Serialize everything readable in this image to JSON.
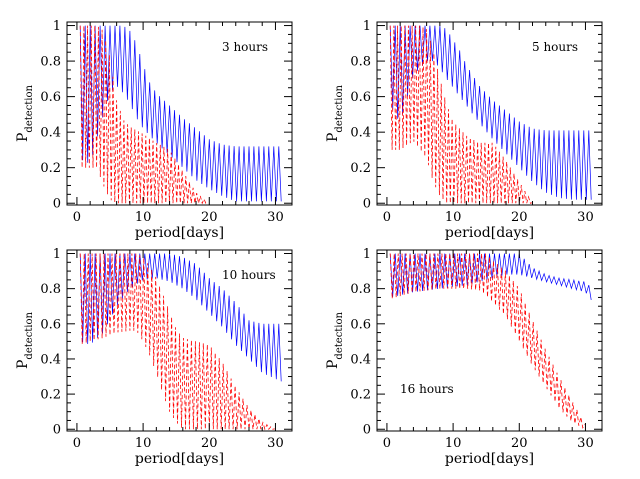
{
  "chart_data": [
    {
      "type": "line",
      "annotation": "3 hours",
      "xlabel": "period[days]",
      "ylabel_main": "P",
      "ylabel_sub": "detection",
      "xlim": [
        -1.5,
        32.5
      ],
      "ylim": [
        -0.01,
        1.02
      ],
      "xticks": [
        0,
        10,
        20,
        30
      ],
      "yticks": [
        0,
        0.2,
        0.4,
        0.6,
        0.8,
        1
      ],
      "series": [
        {
          "style": "solid",
          "color": "#0000ff",
          "x": [
            0.5,
            2,
            4,
            5,
            6,
            7,
            8,
            9,
            10,
            11,
            12,
            14,
            16,
            18,
            20,
            22,
            24,
            26,
            28,
            31
          ],
          "upper": [
            1,
            1,
            1,
            1,
            1,
            1,
            0.97,
            0.9,
            0.78,
            0.68,
            0.62,
            0.55,
            0.48,
            0.42,
            0.36,
            0.33,
            0.32,
            0.32,
            0.32,
            0.32
          ],
          "lower": [
            0.25,
            0.22,
            0.5,
            0.62,
            0.66,
            0.62,
            0.56,
            0.48,
            0.42,
            0.38,
            0.34,
            0.27,
            0.2,
            0.13,
            0.08,
            0.04,
            0.01,
            0.01,
            0.01,
            0.01
          ],
          "spacing": 0.75
        },
        {
          "style": "dashed",
          "color": "#ff0000",
          "x": [
            0.5,
            2,
            3,
            4,
            5,
            6,
            7,
            8,
            10,
            12,
            14,
            16,
            18,
            20
          ],
          "upper": [
            1,
            1,
            1,
            0.97,
            0.82,
            0.58,
            0.47,
            0.43,
            0.39,
            0.34,
            0.3,
            0.18,
            0.06,
            0
          ],
          "lower": [
            0.2,
            0.2,
            0.2,
            0.1,
            0.02,
            0,
            0,
            0,
            0,
            0,
            0,
            0,
            0,
            0
          ],
          "spacing": 0.55
        }
      ]
    },
    {
      "type": "line",
      "annotation": "5 hours",
      "xlabel": "period[days]",
      "ylabel_main": "P",
      "ylabel_sub": "detection",
      "xlim": [
        -1.5,
        32.5
      ],
      "ylim": [
        -0.01,
        1.02
      ],
      "xticks": [
        0,
        10,
        20,
        30
      ],
      "yticks": [
        0,
        0.2,
        0.4,
        0.6,
        0.8,
        1
      ],
      "series": [
        {
          "style": "solid",
          "color": "#0000ff",
          "x": [
            0.5,
            2,
            4,
            6,
            7,
            8,
            9,
            10,
            11,
            12,
            14,
            16,
            18,
            20,
            22,
            24,
            26,
            28,
            31
          ],
          "upper": [
            1,
            1,
            1,
            1,
            1,
            1,
            0.98,
            0.92,
            0.86,
            0.78,
            0.66,
            0.58,
            0.52,
            0.46,
            0.42,
            0.41,
            0.41,
            0.41,
            0.41
          ],
          "lower": [
            0.55,
            0.45,
            0.72,
            0.8,
            0.8,
            0.76,
            0.7,
            0.65,
            0.6,
            0.55,
            0.45,
            0.36,
            0.28,
            0.2,
            0.12,
            0.06,
            0.03,
            0.02,
            0.02
          ],
          "spacing": 0.75
        },
        {
          "style": "dashed",
          "color": "#ff0000",
          "x": [
            0.5,
            2,
            4,
            5,
            6,
            7,
            8,
            9,
            10,
            12,
            14,
            16,
            18,
            20,
            22
          ],
          "upper": [
            1,
            1,
            1,
            1,
            0.98,
            0.86,
            0.7,
            0.56,
            0.46,
            0.38,
            0.34,
            0.34,
            0.24,
            0.12,
            0
          ],
          "lower": [
            0.3,
            0.3,
            0.35,
            0.3,
            0.25,
            0.12,
            0.04,
            0,
            0,
            0,
            0,
            0,
            0,
            0,
            0
          ],
          "spacing": 0.55
        }
      ]
    },
    {
      "type": "line",
      "annotation": "10 hours",
      "xlabel": "period[days]",
      "ylabel_main": "P",
      "ylabel_sub": "detection",
      "xlim": [
        -1.5,
        32.5
      ],
      "ylim": [
        -0.01,
        1.02
      ],
      "xticks": [
        0,
        10,
        20,
        30
      ],
      "yticks": [
        0,
        0.2,
        0.4,
        0.6,
        0.8,
        1
      ],
      "series": [
        {
          "style": "solid",
          "color": "#0000ff",
          "x": [
            0.5,
            2,
            4,
            6,
            8,
            10,
            12,
            14,
            16,
            18,
            20,
            22,
            24,
            26,
            28,
            31
          ],
          "upper": [
            1,
            1,
            1,
            1,
            1,
            1,
            1,
            1,
            0.98,
            0.94,
            0.86,
            0.8,
            0.72,
            0.62,
            0.6,
            0.6
          ],
          "lower": [
            0.5,
            0.48,
            0.55,
            0.7,
            0.8,
            0.85,
            0.86,
            0.84,
            0.8,
            0.74,
            0.66,
            0.58,
            0.48,
            0.4,
            0.32,
            0.27
          ],
          "spacing": 0.75
        },
        {
          "style": "dashed",
          "color": "#ff0000",
          "x": [
            0.5,
            2,
            4,
            6,
            8,
            9,
            10,
            11,
            12,
            13,
            14,
            15,
            16,
            18,
            20,
            22,
            24,
            26,
            28,
            30
          ],
          "upper": [
            1,
            1,
            1,
            1,
            1,
            1,
            0.98,
            0.93,
            0.86,
            0.77,
            0.67,
            0.57,
            0.52,
            0.5,
            0.48,
            0.38,
            0.24,
            0.12,
            0.04,
            0
          ],
          "lower": [
            0.48,
            0.5,
            0.52,
            0.55,
            0.56,
            0.56,
            0.5,
            0.42,
            0.32,
            0.2,
            0.1,
            0.04,
            0,
            0,
            0,
            0,
            0,
            0,
            0,
            0
          ],
          "spacing": 0.6
        }
      ]
    },
    {
      "type": "line",
      "annotation": "16 hours",
      "xlabel": "period[days]",
      "ylabel_main": "P",
      "ylabel_sub": "detection",
      "xlim": [
        -1.5,
        32.5
      ],
      "ylim": [
        -0.01,
        1.02
      ],
      "xticks": [
        0,
        10,
        20,
        30
      ],
      "yticks": [
        0,
        0.2,
        0.4,
        0.6,
        0.8,
        1
      ],
      "series": [
        {
          "style": "solid",
          "color": "#0000ff",
          "x": [
            0.5,
            4,
            8,
            12,
            14,
            16,
            18,
            20,
            22,
            24,
            26,
            28,
            30,
            31
          ],
          "upper": [
            1,
            1,
            1,
            1,
            1,
            1,
            1,
            1,
            0.92,
            0.88,
            0.86,
            0.85,
            0.84,
            0.8
          ],
          "lower": [
            0.75,
            0.78,
            0.8,
            0.82,
            0.84,
            0.86,
            0.88,
            0.88,
            0.86,
            0.84,
            0.82,
            0.8,
            0.78,
            0.73
          ],
          "spacing": 0.75
        },
        {
          "style": "dashed",
          "color": "#ff0000",
          "x": [
            0.5,
            4,
            8,
            12,
            14,
            15,
            16,
            17,
            18,
            20,
            22,
            24,
            26,
            28,
            30
          ],
          "upper": [
            1,
            1,
            1,
            1,
            1,
            1,
            0.96,
            0.93,
            0.9,
            0.8,
            0.62,
            0.45,
            0.3,
            0.16,
            0.02
          ],
          "lower": [
            0.74,
            0.78,
            0.8,
            0.8,
            0.79,
            0.76,
            0.72,
            0.68,
            0.64,
            0.5,
            0.36,
            0.24,
            0.12,
            0.04,
            0
          ],
          "spacing": 0.6
        }
      ]
    }
  ]
}
